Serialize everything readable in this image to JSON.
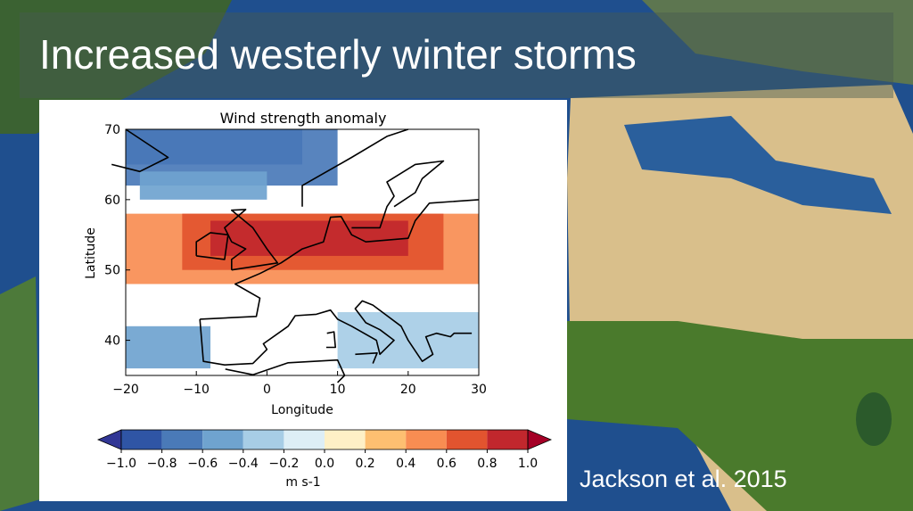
{
  "slide": {
    "title": "Increased westerly winter storms",
    "citation": "Jackson et al. 2015"
  },
  "chart_data": {
    "type": "heatmap",
    "title": "Wind strength anomaly",
    "xlabel": "Longitude",
    "ylabel": "Latitude",
    "xlim": [
      -20,
      30
    ],
    "ylim": [
      35,
      70
    ],
    "xticks": [
      "−20",
      "−10",
      "0",
      "10",
      "20",
      "30"
    ],
    "yticks": [
      "40",
      "50",
      "60",
      "70"
    ],
    "colorbar": {
      "label": "m s-1",
      "ticks": [
        "−1.0",
        "−0.8",
        "−0.6",
        "−0.4",
        "−0.2",
        "0.0",
        "0.2",
        "0.4",
        "0.6",
        "0.8",
        "1.0"
      ],
      "extend": "both",
      "colors": [
        "#313695",
        "#2f55a5",
        "#4a7ab8",
        "#6fa3cf",
        "#a7cde6",
        "#ddeef6",
        "#fef0c6",
        "#fdbf71",
        "#f88d52",
        "#e2542f",
        "#c1272d",
        "#a50026"
      ]
    },
    "anomaly_regions": [
      {
        "level": "-1.0",
        "lon": [
          -20,
          5
        ],
        "lat": [
          65,
          70
        ]
      },
      {
        "level": "-0.8",
        "lon": [
          -20,
          10
        ],
        "lat": [
          62,
          70
        ]
      },
      {
        "level": "-0.4",
        "lon": [
          -18,
          0
        ],
        "lat": [
          60,
          64
        ]
      },
      {
        "level": "0.4",
        "lon": [
          -20,
          30
        ],
        "lat": [
          48,
          58
        ]
      },
      {
        "level": "0.6",
        "lon": [
          -12,
          25
        ],
        "lat": [
          50,
          58
        ]
      },
      {
        "level": "0.8",
        "lon": [
          -8,
          20
        ],
        "lat": [
          52,
          57
        ]
      },
      {
        "level": "-0.4",
        "lon": [
          -20,
          -8
        ],
        "lat": [
          36,
          42
        ]
      },
      {
        "level": "-0.2",
        "lon": [
          10,
          30
        ],
        "lat": [
          36,
          44
        ]
      }
    ]
  },
  "colors": {
    "title_text": "#ffffff",
    "map_ocean": "#1e4c8c",
    "map_land": "#5a7a3a"
  }
}
